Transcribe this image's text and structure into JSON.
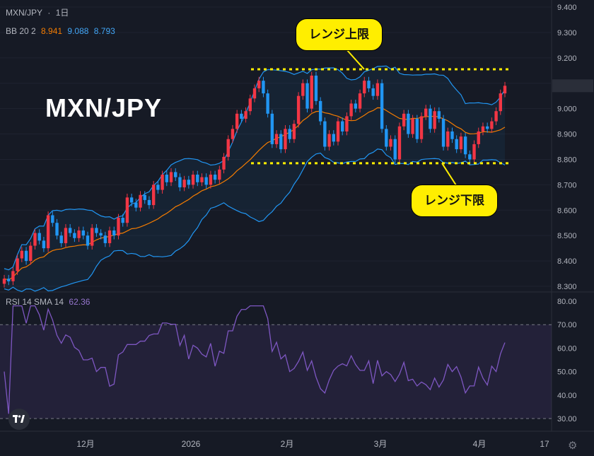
{
  "header": {
    "symbol": "MXN/JPY",
    "separator": "·",
    "interval": "1日",
    "bb_label": "BB 20 2",
    "bb_values": [
      "8.941",
      "9.088",
      "8.793"
    ],
    "rsi_label": "RSI 14 SMA 14",
    "rsi_value": "62.36"
  },
  "title": "MXN/JPY",
  "callouts": {
    "upper": "レンジ上限",
    "lower": "レンジ下限"
  },
  "colors": {
    "background": "#161a25",
    "up": "#f23645",
    "down": "#2196f3",
    "bb_band": "#2962ff",
    "bb_basis": "#f57c00",
    "rsi": "#7e57c2",
    "highlight": "#ffee00"
  },
  "icons": {
    "logo": "tradingview-logo-icon",
    "settings": "gear-icon"
  },
  "chart_data": [
    {
      "type": "candlestick",
      "title": "MXN/JPY",
      "ylim": [
        8.3,
        9.4
      ],
      "yticks": [
        "9.400",
        "9.300",
        "9.200",
        "9.100",
        "9.000",
        "8.900",
        "8.800",
        "8.700",
        "8.600",
        "8.500",
        "8.400",
        "8.300"
      ],
      "xticks": [
        "12月",
        "2026",
        "2月",
        "3月",
        "4月",
        "17"
      ],
      "bb": {
        "upper": 9.088,
        "basis": 8.941,
        "lower": 8.793
      },
      "range_lines": {
        "upper": 9.155,
        "lower": 8.785
      },
      "close": [
        8.33,
        8.32,
        8.36,
        8.41,
        8.44,
        8.4,
        8.46,
        8.51,
        8.48,
        8.45,
        8.58,
        8.55,
        8.5,
        8.47,
        8.53,
        8.51,
        8.49,
        8.52,
        8.5,
        8.46,
        8.53,
        8.51,
        8.5,
        8.47,
        8.52,
        8.5,
        8.57,
        8.55,
        8.65,
        8.63,
        8.61,
        8.66,
        8.64,
        8.62,
        8.7,
        8.68,
        8.74,
        8.71,
        8.75,
        8.73,
        8.69,
        8.72,
        8.7,
        8.74,
        8.71,
        8.73,
        8.7,
        8.74,
        8.72,
        8.76,
        8.81,
        8.88,
        8.92,
        8.98,
        8.96,
        8.99,
        9.04,
        9.08,
        9.11,
        9.06,
        8.98,
        8.86,
        8.9,
        8.84,
        8.92,
        8.88,
        8.94,
        9.05,
        9.1,
        9.0,
        9.13,
        9.03,
        8.95,
        8.85,
        8.9,
        8.87,
        8.95,
        8.91,
        8.97,
        9.02,
        9.0,
        9.06,
        9.11,
        9.08,
        9.05,
        9.1,
        8.92,
        8.85,
        8.88,
        8.8,
        8.93,
        8.98,
        8.9,
        8.96,
        8.88,
        8.97,
        9.0,
        8.92,
        8.99,
        8.96,
        8.85,
        8.91,
        8.88,
        8.84,
        8.89,
        8.82,
        8.8,
        8.86,
        8.91,
        8.93,
        8.92,
        8.95,
        8.99,
        9.06,
        9.09
      ],
      "rsi": {
        "ylim": [
          30,
          80
        ],
        "yticks": [
          "80.00",
          "70.00",
          "60.00",
          "50.00",
          "40.00",
          "30.00"
        ],
        "levels": [
          70,
          30
        ],
        "current": 62.36
      }
    }
  ]
}
